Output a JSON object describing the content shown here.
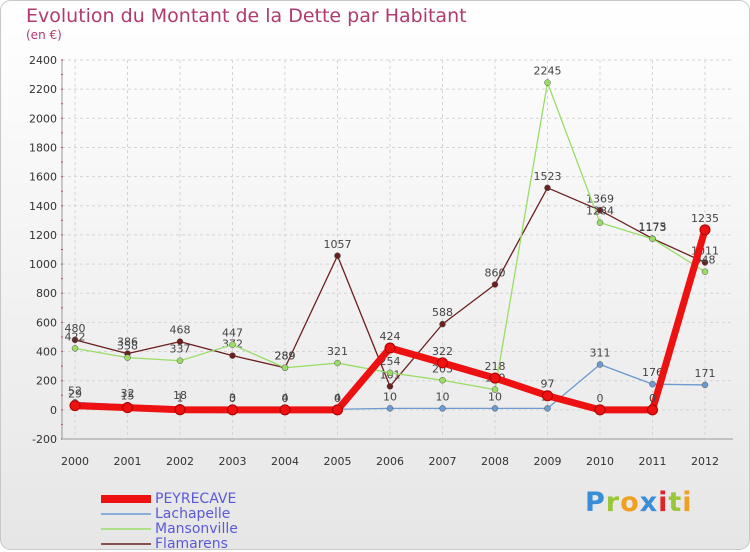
{
  "chart_data": {
    "type": "line",
    "title": "Evolution du Montant de la Dette par Habitant",
    "subtitle": "(en €)",
    "categories": [
      "2000",
      "2001",
      "2002",
      "2003",
      "2004",
      "2005",
      "2006",
      "2007",
      "2008",
      "2009",
      "2010",
      "2011",
      "2012"
    ],
    "ylim": [
      -200,
      2400
    ],
    "yticks": [
      -200,
      0,
      200,
      400,
      600,
      800,
      1000,
      1200,
      1400,
      1600,
      1800,
      2000,
      2200,
      2400
    ],
    "grid": true,
    "legend_position": "bottom-left",
    "series": [
      {
        "name": "PEYRECAVE",
        "color": "#ee1111",
        "values": [
          29,
          15,
          1,
          0,
          0,
          0,
          424,
          322,
          218,
          97,
          0,
          0,
          1235
        ]
      },
      {
        "name": "Lachapelle",
        "color": "#6b9bd1",
        "values": [
          52,
          32,
          18,
          3,
          4,
          4,
          10,
          10,
          10,
          10,
          311,
          176,
          171
        ]
      },
      {
        "name": "Mansonville",
        "color": "#99dd66",
        "values": [
          422,
          358,
          337,
          447,
          289,
          321,
          254,
          203,
          139,
          2245,
          1284,
          1173,
          948
        ]
      },
      {
        "name": "Flamarens",
        "color": "#6b1f1f",
        "values": [
          480,
          386,
          468,
          372,
          289,
          1057,
          161,
          588,
          860,
          1523,
          1369,
          1175,
          1011
        ]
      }
    ]
  },
  "logo": {
    "text": "Proxiti"
  }
}
